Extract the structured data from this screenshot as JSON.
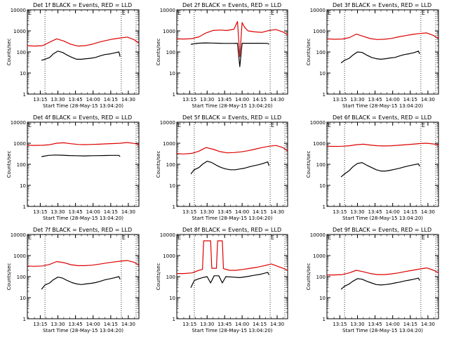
{
  "figure": {
    "xlabel": "Start Time (28-May-15 13:04:20)",
    "ylabel": "Counts/sec",
    "x_tick_labels": [
      "13:15",
      "13:30",
      "13:45",
      "14:00",
      "14:15",
      "14:30"
    ],
    "y_tick_labels": [
      "1",
      "10",
      "100",
      "1000",
      "10000"
    ],
    "edge_marker": "E",
    "event_color": "#000000",
    "lld_color": "#dd0000",
    "marker_line_style": "dotted"
  },
  "chart_data": [
    {
      "type": "line",
      "title": "Det 1f BLACK = Events, RED = LLD",
      "xlabel": "Start Time (28-May-15 13:04:20)",
      "ylabel": "Counts/sec",
      "y_scale": "log",
      "ylim": [
        1,
        10000
      ],
      "xlim": [
        "13:04",
        "14:39"
      ],
      "x_ticks": [
        "13:15",
        "13:30",
        "13:45",
        "14:00",
        "14:15",
        "14:30"
      ],
      "markers": [
        "13:19",
        "14:24"
      ],
      "series": [
        {
          "name": "LLD",
          "color": "#dd0000",
          "x": [
            "13:04",
            "13:10",
            "13:17",
            "13:23",
            "13:29",
            "13:35",
            "13:41",
            "13:47",
            "13:53",
            "13:59",
            "14:05",
            "14:11",
            "14:17",
            "14:23",
            "14:29",
            "14:35",
            "14:39"
          ],
          "y": [
            200,
            190,
            200,
            290,
            420,
            330,
            230,
            190,
            200,
            230,
            290,
            350,
            410,
            460,
            510,
            380,
            260
          ]
        },
        {
          "name": "Events",
          "color": "#000000",
          "x": [
            "13:16",
            "13:19",
            "13:23",
            "13:26",
            "13:30",
            "13:34",
            "13:38",
            "13:42",
            "13:46",
            "13:50",
            "13:54",
            "13:58",
            "14:02",
            "14:06",
            "14:10",
            "14:14",
            "14:18",
            "14:22",
            "14:23"
          ],
          "y": [
            40,
            45,
            55,
            80,
            110,
            95,
            70,
            55,
            45,
            45,
            48,
            50,
            55,
            65,
            75,
            80,
            90,
            100,
            60
          ]
        }
      ]
    },
    {
      "type": "line",
      "title": "Det 2f BLACK = Events, RED = LLD",
      "xlabel": "Start Time (28-May-15 13:04:20)",
      "ylabel": "Counts/sec",
      "y_scale": "log",
      "ylim": [
        1,
        10000
      ],
      "xlim": [
        "13:04",
        "14:39"
      ],
      "x_ticks": [
        "13:15",
        "13:30",
        "13:45",
        "14:00",
        "14:15",
        "14:30"
      ],
      "markers": [
        "13:19",
        "14:24"
      ],
      "series": [
        {
          "name": "LLD",
          "color": "#dd0000",
          "x": [
            "13:04",
            "13:10",
            "13:17",
            "13:23",
            "13:29",
            "13:35",
            "13:41",
            "13:47",
            "13:53",
            "13:56",
            "13:58",
            "14:00",
            "14:02",
            "14:05",
            "14:11",
            "14:17",
            "14:23",
            "14:29",
            "14:35",
            "14:39"
          ],
          "y": [
            420,
            410,
            430,
            520,
            800,
            1050,
            1100,
            1050,
            1200,
            2800,
            60,
            2500,
            1500,
            1000,
            900,
            850,
            1050,
            1150,
            900,
            650
          ]
        },
        {
          "name": "Events",
          "color": "#000000",
          "x": [
            "13:16",
            "13:22",
            "13:28",
            "13:34",
            "13:40",
            "13:46",
            "13:52",
            "13:56",
            "13:58",
            "14:00",
            "14:04",
            "14:10",
            "14:16",
            "14:22",
            "14:23"
          ],
          "y": [
            230,
            260,
            270,
            265,
            260,
            255,
            255,
            260,
            20,
            260,
            260,
            260,
            260,
            255,
            230
          ]
        }
      ]
    },
    {
      "type": "line",
      "title": "Det 3f BLACK = Events, RED = LLD",
      "xlabel": "Start Time (28-May-15 13:04:20)",
      "ylabel": "Counts/sec",
      "y_scale": "log",
      "ylim": [
        1,
        10000
      ],
      "xlim": [
        "13:04",
        "14:39"
      ],
      "x_ticks": [
        "13:15",
        "13:30",
        "13:45",
        "14:00",
        "14:15",
        "14:30"
      ],
      "markers": [
        "13:19",
        "14:24"
      ],
      "series": [
        {
          "name": "LLD",
          "color": "#dd0000",
          "x": [
            "13:04",
            "13:10",
            "13:17",
            "13:23",
            "13:29",
            "13:35",
            "13:41",
            "13:47",
            "13:53",
            "13:59",
            "14:05",
            "14:11",
            "14:17",
            "14:23",
            "14:29",
            "14:35",
            "14:39"
          ],
          "y": [
            420,
            400,
            410,
            480,
            700,
            550,
            430,
            390,
            400,
            440,
            520,
            600,
            680,
            750,
            800,
            600,
            430
          ]
        },
        {
          "name": "Events",
          "color": "#000000",
          "x": [
            "13:16",
            "13:19",
            "13:23",
            "13:26",
            "13:30",
            "13:34",
            "13:38",
            "13:42",
            "13:46",
            "13:50",
            "13:54",
            "13:58",
            "14:02",
            "14:06",
            "14:10",
            "14:14",
            "14:18",
            "14:22",
            "14:23"
          ],
          "y": [
            30,
            40,
            50,
            70,
            100,
            95,
            70,
            55,
            48,
            45,
            48,
            52,
            55,
            65,
            75,
            82,
            92,
            110,
            80
          ]
        }
      ]
    },
    {
      "type": "line",
      "title": "Det 4f BLACK = Events, RED = LLD",
      "xlabel": "Start Time (28-May-15 13:04:20)",
      "ylabel": "Counts/sec",
      "y_scale": "log",
      "ylim": [
        1,
        10000
      ],
      "xlim": [
        "13:04",
        "14:39"
      ],
      "x_ticks": [
        "13:15",
        "13:30",
        "13:45",
        "14:00",
        "14:15",
        "14:30"
      ],
      "markers": [],
      "series": [
        {
          "name": "LLD",
          "color": "#dd0000",
          "x": [
            "13:04",
            "13:10",
            "13:17",
            "13:23",
            "13:29",
            "13:35",
            "13:41",
            "13:47",
            "13:53",
            "13:59",
            "14:05",
            "14:11",
            "14:17",
            "14:23",
            "14:29",
            "14:35",
            "14:39"
          ],
          "y": [
            800,
            790,
            800,
            850,
            1000,
            1050,
            950,
            880,
            860,
            880,
            900,
            930,
            960,
            1000,
            1080,
            980,
            870
          ]
        },
        {
          "name": "Events",
          "color": "#000000",
          "x": [
            "13:16",
            "13:22",
            "13:28",
            "13:34",
            "13:40",
            "13:46",
            "13:52",
            "13:58",
            "14:04",
            "14:10",
            "14:16",
            "14:22",
            "14:23"
          ],
          "y": [
            230,
            265,
            275,
            270,
            260,
            255,
            250,
            255,
            258,
            262,
            265,
            265,
            230
          ]
        }
      ]
    },
    {
      "type": "line",
      "title": "Det 5f BLACK = Events, RED = LLD",
      "xlabel": "Start Time (28-May-15 13:04:20)",
      "ylabel": "Counts/sec",
      "y_scale": "log",
      "ylim": [
        1,
        10000
      ],
      "xlim": [
        "13:04",
        "14:39"
      ],
      "x_ticks": [
        "13:15",
        "13:30",
        "13:45",
        "14:00",
        "14:15",
        "14:30"
      ],
      "markers": [
        "13:19",
        "14:24"
      ],
      "series": [
        {
          "name": "LLD",
          "color": "#dd0000",
          "x": [
            "13:04",
            "13:10",
            "13:17",
            "13:23",
            "13:29",
            "13:35",
            "13:41",
            "13:47",
            "13:53",
            "13:59",
            "14:05",
            "14:11",
            "14:17",
            "14:23",
            "14:29",
            "14:35",
            "14:39"
          ],
          "y": [
            320,
            310,
            330,
            420,
            620,
            520,
            400,
            350,
            360,
            390,
            440,
            520,
            620,
            720,
            780,
            620,
            430
          ]
        },
        {
          "name": "Events",
          "color": "#000000",
          "x": [
            "13:16",
            "13:19",
            "13:23",
            "13:26",
            "13:30",
            "13:34",
            "13:38",
            "13:42",
            "13:46",
            "13:50",
            "13:54",
            "13:58",
            "14:02",
            "14:06",
            "14:10",
            "14:14",
            "14:18",
            "14:22",
            "14:23"
          ],
          "y": [
            35,
            55,
            70,
            100,
            140,
            120,
            90,
            70,
            60,
            55,
            55,
            60,
            65,
            75,
            85,
            95,
            110,
            130,
            85
          ]
        }
      ]
    },
    {
      "type": "line",
      "title": "Det 6f BLACK = Events, RED = LLD",
      "xlabel": "Start Time (28-May-15 13:04:20)",
      "ylabel": "Counts/sec",
      "y_scale": "log",
      "ylim": [
        1,
        10000
      ],
      "xlim": [
        "13:04",
        "14:39"
      ],
      "x_ticks": [
        "13:15",
        "13:30",
        "13:45",
        "14:00",
        "14:15",
        "14:30"
      ],
      "markers": [
        "13:19",
        "14:24"
      ],
      "series": [
        {
          "name": "LLD",
          "color": "#dd0000",
          "x": [
            "13:04",
            "13:10",
            "13:17",
            "13:23",
            "13:29",
            "13:35",
            "13:41",
            "13:47",
            "13:53",
            "13:59",
            "14:05",
            "14:11",
            "14:17",
            "14:23",
            "14:29",
            "14:35",
            "14:39"
          ],
          "y": [
            720,
            710,
            720,
            760,
            850,
            900,
            820,
            760,
            740,
            760,
            800,
            850,
            900,
            960,
            1000,
            920,
            800
          ]
        },
        {
          "name": "Events",
          "color": "#000000",
          "x": [
            "13:16",
            "13:19",
            "13:23",
            "13:26",
            "13:30",
            "13:34",
            "13:38",
            "13:42",
            "13:46",
            "13:50",
            "13:54",
            "13:58",
            "14:02",
            "14:06",
            "14:10",
            "14:14",
            "14:18",
            "14:22",
            "14:23"
          ],
          "y": [
            25,
            35,
            50,
            75,
            110,
            120,
            90,
            70,
            55,
            48,
            48,
            52,
            58,
            65,
            75,
            85,
            95,
            105,
            80
          ]
        }
      ]
    },
    {
      "type": "line",
      "title": "Det 7f BLACK = Events, RED = LLD",
      "xlabel": "Start Time (28-May-15 13:04:20)",
      "ylabel": "Counts/sec",
      "y_scale": "log",
      "ylim": [
        1,
        10000
      ],
      "xlim": [
        "13:04",
        "14:39"
      ],
      "x_ticks": [
        "13:15",
        "13:30",
        "13:45",
        "14:00",
        "14:15",
        "14:30"
      ],
      "markers": [
        "13:19",
        "14:24"
      ],
      "series": [
        {
          "name": "LLD",
          "color": "#dd0000",
          "x": [
            "13:04",
            "13:10",
            "13:17",
            "13:23",
            "13:29",
            "13:35",
            "13:41",
            "13:47",
            "13:53",
            "13:59",
            "14:05",
            "14:11",
            "14:17",
            "14:23",
            "14:29",
            "14:35",
            "14:39"
          ],
          "y": [
            320,
            310,
            320,
            380,
            520,
            460,
            370,
            330,
            330,
            350,
            390,
            440,
            490,
            540,
            580,
            480,
            350
          ]
        },
        {
          "name": "Events",
          "color": "#000000",
          "x": [
            "13:16",
            "13:19",
            "13:23",
            "13:26",
            "13:30",
            "13:34",
            "13:38",
            "13:42",
            "13:46",
            "13:50",
            "13:54",
            "13:58",
            "14:02",
            "14:06",
            "14:10",
            "14:14",
            "14:18",
            "14:22",
            "14:23"
          ],
          "y": [
            25,
            40,
            50,
            70,
            95,
            85,
            65,
            52,
            45,
            42,
            45,
            48,
            52,
            60,
            70,
            78,
            88,
            100,
            75
          ]
        }
      ]
    },
    {
      "type": "line",
      "title": "Det 8f BLACK = Events, RED = LLD",
      "xlabel": "Start Time (28-May-15 13:04:20)",
      "ylabel": "Counts/sec",
      "y_scale": "log",
      "ylim": [
        1,
        10000
      ],
      "xlim": [
        "13:04",
        "14:39"
      ],
      "x_ticks": [
        "13:15",
        "13:30",
        "13:45",
        "14:00",
        "14:15",
        "14:30"
      ],
      "markers": [
        "13:19",
        "14:24"
      ],
      "series": [
        {
          "name": "LLD",
          "color": "#dd0000",
          "x": [
            "13:04",
            "13:10",
            "13:17",
            "13:23",
            "13:26",
            "13:27",
            "13:33",
            "13:34",
            "13:38",
            "13:39",
            "13:43",
            "13:44",
            "13:49",
            "13:55",
            "14:01",
            "14:07",
            "14:13",
            "14:19",
            "14:25",
            "14:31",
            "14:35",
            "14:39"
          ],
          "y": [
            140,
            140,
            150,
            200,
            220,
            5000,
            5000,
            250,
            250,
            5000,
            5000,
            240,
            200,
            200,
            220,
            250,
            280,
            330,
            400,
            300,
            250,
            200
          ]
        },
        {
          "name": "Events",
          "color": "#000000",
          "x": [
            "13:16",
            "13:19",
            "13:23",
            "13:26",
            "13:30",
            "13:33",
            "13:36",
            "13:40",
            "13:43",
            "13:46",
            "13:52",
            "13:58",
            "14:04",
            "14:10",
            "14:16",
            "14:22",
            "14:23"
          ],
          "y": [
            30,
            65,
            80,
            90,
            100,
            50,
            110,
            110,
            50,
            100,
            95,
            90,
            100,
            115,
            130,
            160,
            120
          ]
        }
      ]
    },
    {
      "type": "line",
      "title": "Det 9f BLACK = Events, RED = LLD",
      "xlabel": "Start Time (28-May-15 13:04:20)",
      "ylabel": "Counts/sec",
      "y_scale": "log",
      "ylim": [
        1,
        10000
      ],
      "xlim": [
        "13:04",
        "14:39"
      ],
      "x_ticks": [
        "13:15",
        "13:30",
        "13:45",
        "14:00",
        "14:15",
        "14:30"
      ],
      "markers": [
        "13:19",
        "14:24"
      ],
      "series": [
        {
          "name": "LLD",
          "color": "#dd0000",
          "x": [
            "13:04",
            "13:10",
            "13:17",
            "13:23",
            "13:29",
            "13:35",
            "13:41",
            "13:47",
            "13:53",
            "13:59",
            "14:05",
            "14:11",
            "14:17",
            "14:23",
            "14:29",
            "14:35",
            "14:39"
          ],
          "y": [
            120,
            120,
            125,
            150,
            200,
            170,
            140,
            125,
            125,
            135,
            150,
            175,
            200,
            230,
            260,
            200,
            150
          ]
        },
        {
          "name": "Events",
          "color": "#000000",
          "x": [
            "13:16",
            "13:19",
            "13:23",
            "13:26",
            "13:30",
            "13:34",
            "13:38",
            "13:42",
            "13:46",
            "13:50",
            "13:54",
            "13:58",
            "14:02",
            "14:06",
            "14:10",
            "14:14",
            "14:18",
            "14:22",
            "14:23"
          ],
          "y": [
            25,
            35,
            45,
            60,
            80,
            75,
            60,
            50,
            42,
            40,
            42,
            45,
            50,
            55,
            62,
            68,
            75,
            85,
            65
          ]
        }
      ]
    }
  ]
}
